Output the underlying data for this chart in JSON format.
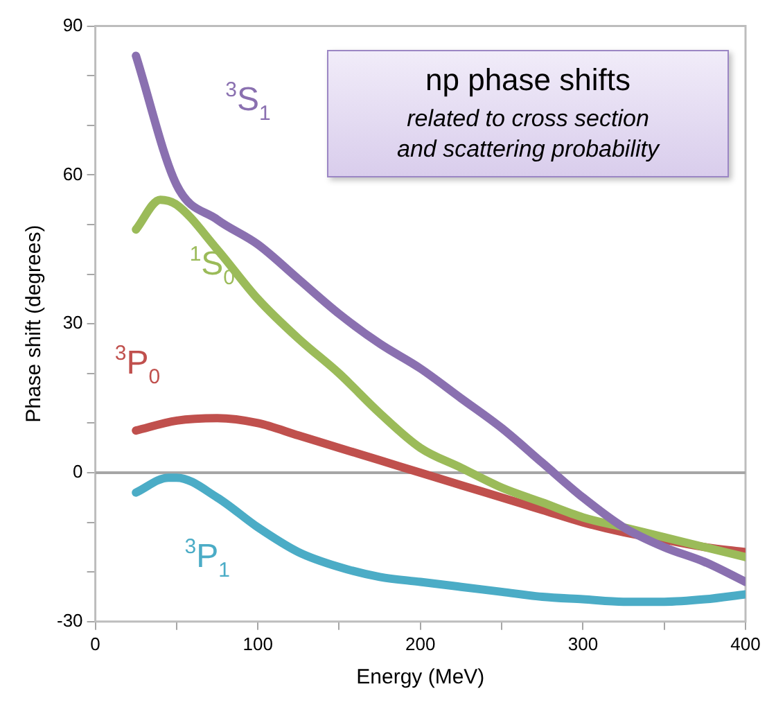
{
  "chart_data": {
    "type": "line",
    "title": "np phase shifts",
    "subtitle": "related to cross section and scattering probability",
    "xlabel": "Energy (MeV)",
    "ylabel": "Phase shift (degrees)",
    "series": [
      {
        "name": "$^{3}$S$_{1}$",
        "color": "#8a70b0",
        "x": [
          25,
          50,
          75,
          100,
          125,
          150,
          175,
          200,
          225,
          250,
          275,
          300,
          325,
          350,
          375,
          400
        ],
        "values": [
          84,
          58,
          51,
          46,
          39,
          32,
          26,
          21,
          15,
          9,
          2,
          -5,
          -11,
          -15,
          -18,
          -22
        ]
      },
      {
        "name": "$^{1}$S$_{0}$",
        "color": "#9bbb59",
        "x": [
          25,
          40,
          50,
          75,
          100,
          125,
          150,
          175,
          200,
          225,
          250,
          275,
          300,
          325,
          350,
          375,
          400
        ],
        "values": [
          49,
          55,
          54,
          45,
          35,
          27,
          20,
          12,
          5,
          1,
          -3,
          -6,
          -9,
          -11,
          -13,
          -15,
          -17
        ]
      },
      {
        "name": "$^{3}$P$_{0}$",
        "color": "#c0504d",
        "x": [
          25,
          50,
          75,
          100,
          125,
          150,
          175,
          200,
          225,
          250,
          275,
          300,
          325,
          350,
          375,
          400
        ],
        "values": [
          8.5,
          10.5,
          11,
          10,
          7.5,
          5,
          2.5,
          0,
          -2.5,
          -5,
          -7.5,
          -10,
          -12,
          -13.5,
          -15,
          -16
        ]
      },
      {
        "name": "$^{3}$P$_{1}$",
        "color": "#4bacc6",
        "x": [
          25,
          45,
          50,
          75,
          100,
          125,
          150,
          175,
          200,
          225,
          250,
          275,
          300,
          325,
          350,
          375,
          400
        ],
        "values": [
          -4,
          -1,
          -1,
          -5,
          -11,
          -16,
          -19,
          -21,
          -22,
          -23,
          -24,
          -25,
          -25.5,
          -26,
          -26,
          -25.5,
          -24.5
        ]
      }
    ],
    "xlim": [
      0,
      400
    ],
    "xticks": [
      0,
      {
        "value": 50,
        "label": null
      },
      100,
      {
        "value": 150,
        "label": null
      },
      200,
      {
        "value": 250,
        "label": null
      },
      300,
      {
        "value": 350,
        "label": null
      },
      400
    ],
    "ylim": [
      -30,
      90
    ],
    "yticks": [
      -30,
      {
        "value": -20,
        "label": null
      },
      {
        "value": -10,
        "label": null
      },
      0,
      {
        "value": 10,
        "label": null
      },
      {
        "value": 20,
        "label": null
      },
      30,
      {
        "value": 40,
        "label": null
      },
      {
        "value": 50,
        "label": null
      },
      60,
      {
        "value": 70,
        "label": null
      },
      {
        "value": 80,
        "label": null
      },
      90
    ],
    "ref_lines": [
      {
        "axis": "y",
        "value": 0,
        "color": "#a6a6a6"
      }
    ],
    "grid": false,
    "legend": false,
    "marker": "none",
    "line_style": "solid"
  }
}
